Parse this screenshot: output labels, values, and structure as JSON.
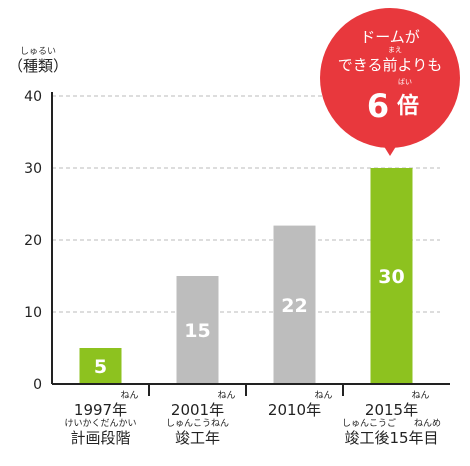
{
  "unit": {
    "ruby": "しゅるい",
    "label": "（種類）"
  },
  "chart_data": {
    "type": "bar",
    "ylim": [
      0,
      40
    ],
    "yticks": [
      0,
      10,
      20,
      30,
      40
    ],
    "grid": true,
    "categories": [
      {
        "label": "1997年",
        "label_ruby": "ねん",
        "sub": "計画段階",
        "sub_ruby": "けいかくだんかい"
      },
      {
        "label": "2001年",
        "label_ruby": "ねん",
        "sub": "竣工年",
        "sub_ruby": "しゅんこうねん"
      },
      {
        "label": "2010年",
        "label_ruby": "ねん",
        "sub": "",
        "sub_ruby": ""
      },
      {
        "label": "2015年",
        "label_ruby": "ねん",
        "sub": "竣工後15年目",
        "sub_ruby": "しゅんこうご　　ねんめ"
      }
    ],
    "values": [
      5,
      15,
      22,
      30
    ],
    "value_labels": [
      "5",
      "15",
      "22",
      ""
    ],
    "highlight_label": "30",
    "colors": [
      "#8dc21f",
      "#bdbdbd",
      "#bdbdbd",
      "#8dc21f"
    ]
  },
  "callout": {
    "line1": "ドームが",
    "ruby1": "まえ",
    "line2": "できる前よりも",
    "ruby2": "ばい",
    "big_number": "6",
    "big_unit": "倍",
    "color": "#e8383d"
  }
}
